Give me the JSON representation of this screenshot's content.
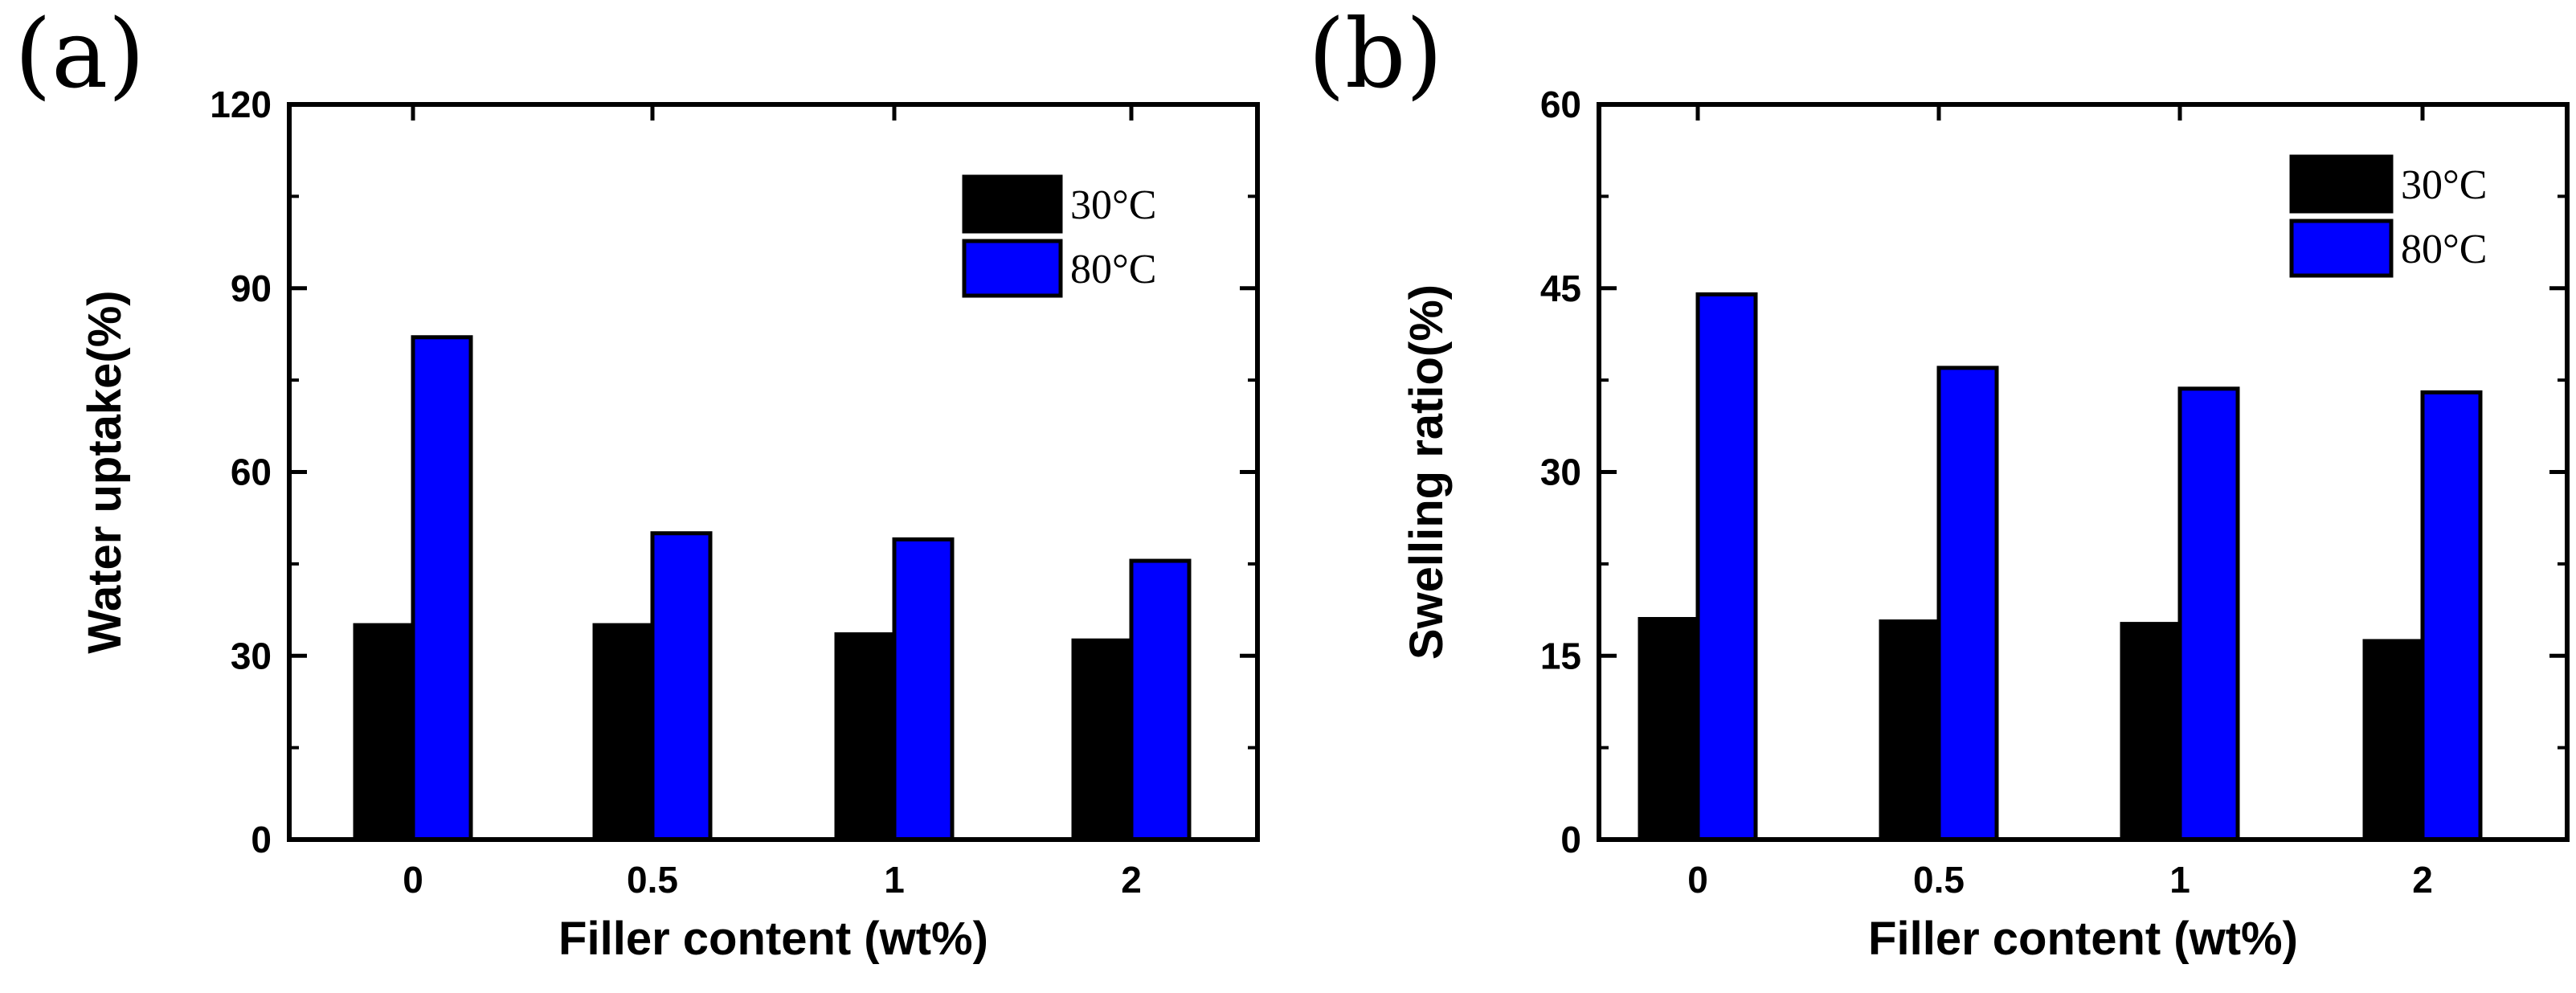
{
  "chart_data": [
    {
      "panel": "(a)",
      "type": "bar",
      "categories": [
        "0",
        "0.5",
        "1",
        "2"
      ],
      "series": [
        {
          "name": "30°C",
          "color": "#000000",
          "values": [
            35,
            35,
            33.5,
            32.5
          ]
        },
        {
          "name": "80°C",
          "color": "#0000ff",
          "values": [
            82,
            50,
            49,
            45.5
          ]
        }
      ],
      "xlabel": "Filler  content (wt%)",
      "ylabel": "Water uptake(%)",
      "ylim": [
        0,
        120
      ],
      "yticks": [
        "0",
        "30",
        "60",
        "90",
        "120"
      ],
      "legend_position": "top-right"
    },
    {
      "panel": "(b)",
      "type": "bar",
      "categories": [
        "0",
        "0.5",
        "1",
        "2"
      ],
      "series": [
        {
          "name": "30°C",
          "color": "#000000",
          "values": [
            18,
            17.8,
            17.6,
            16.2
          ]
        },
        {
          "name": "80°C",
          "color": "#0000ff",
          "values": [
            44.5,
            38.5,
            36.8,
            36.5
          ]
        }
      ],
      "xlabel": "Filler content (wt%)",
      "ylabel": "Swelling ratio(%)",
      "ylim": [
        0,
        60
      ],
      "yticks": [
        "0",
        "15",
        "30",
        "45",
        "60"
      ],
      "legend_position": "top-right"
    }
  ]
}
